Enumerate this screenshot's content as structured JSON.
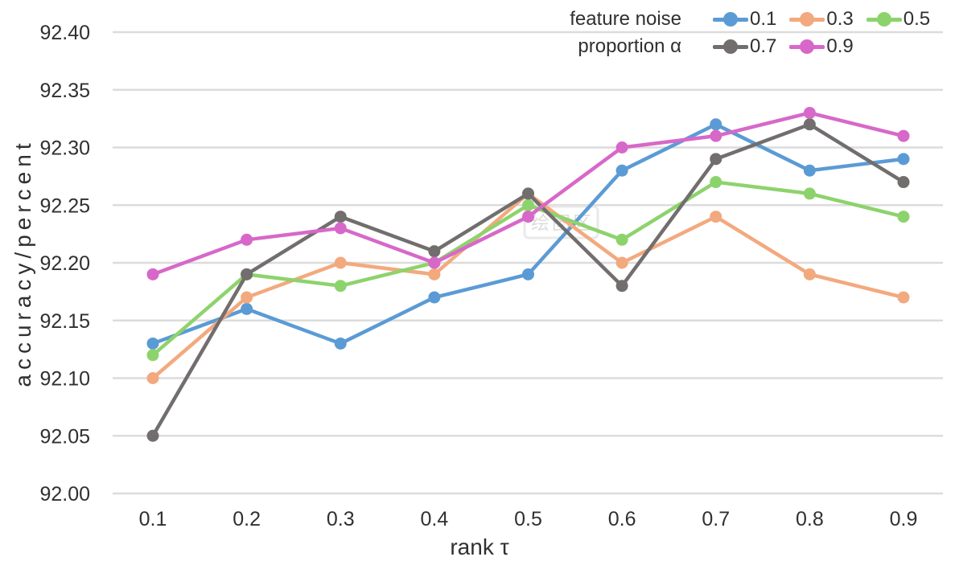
{
  "watermark": "绘图区",
  "palette": {
    "grid": "#dcdcdc",
    "text": "#303030",
    "background": "#ffffff"
  },
  "chart_data": {
    "type": "line",
    "title": "",
    "xlabel": "rank τ",
    "ylabel": "accuracy/percent",
    "x": [
      0.1,
      0.2,
      0.3,
      0.4,
      0.5,
      0.6,
      0.7,
      0.8,
      0.9
    ],
    "xticks": [
      "0.1",
      "0.2",
      "0.3",
      "0.4",
      "0.5",
      "0.6",
      "0.7",
      "0.8",
      "0.9"
    ],
    "yticks": [
      "92.00",
      "92.05",
      "92.10",
      "92.15",
      "92.20",
      "92.25",
      "92.30",
      "92.35",
      "92.40"
    ],
    "ylim": [
      92.0,
      92.4
    ],
    "ytick_step": 0.05,
    "grid": "horizontal",
    "marker": "circle",
    "legend_position": "top-right",
    "legend": {
      "rows": [
        {
          "title": "feature noise",
          "entries": [
            {
              "label": "0.1",
              "color": "#5B9BD5"
            },
            {
              "label": "0.3",
              "color": "#F3A97E"
            },
            {
              "label": "0.5",
              "color": "#8DD36C"
            }
          ]
        },
        {
          "title": "proportion α",
          "entries": [
            {
              "label": "0.7",
              "color": "#726E6E"
            },
            {
              "label": "0.9",
              "color": "#D768C9"
            }
          ]
        }
      ]
    },
    "series": [
      {
        "name": "0.1",
        "color": "#5B9BD5",
        "values": [
          92.13,
          92.16,
          92.13,
          92.17,
          92.19,
          92.28,
          92.32,
          92.28,
          92.29
        ]
      },
      {
        "name": "0.3",
        "color": "#F3A97E",
        "values": [
          92.1,
          92.17,
          92.2,
          92.19,
          92.26,
          92.2,
          92.24,
          92.19,
          92.17
        ]
      },
      {
        "name": "0.5",
        "color": "#8DD36C",
        "values": [
          92.12,
          92.19,
          92.18,
          92.2,
          92.25,
          92.22,
          92.27,
          92.26,
          92.24
        ]
      },
      {
        "name": "0.7",
        "color": "#726E6E",
        "values": [
          92.05,
          92.19,
          92.24,
          92.21,
          92.26,
          92.18,
          92.29,
          92.32,
          92.27
        ]
      },
      {
        "name": "0.9",
        "color": "#D768C9",
        "values": [
          92.19,
          92.22,
          92.23,
          92.2,
          92.24,
          92.3,
          92.31,
          92.33,
          92.31
        ]
      }
    ]
  }
}
